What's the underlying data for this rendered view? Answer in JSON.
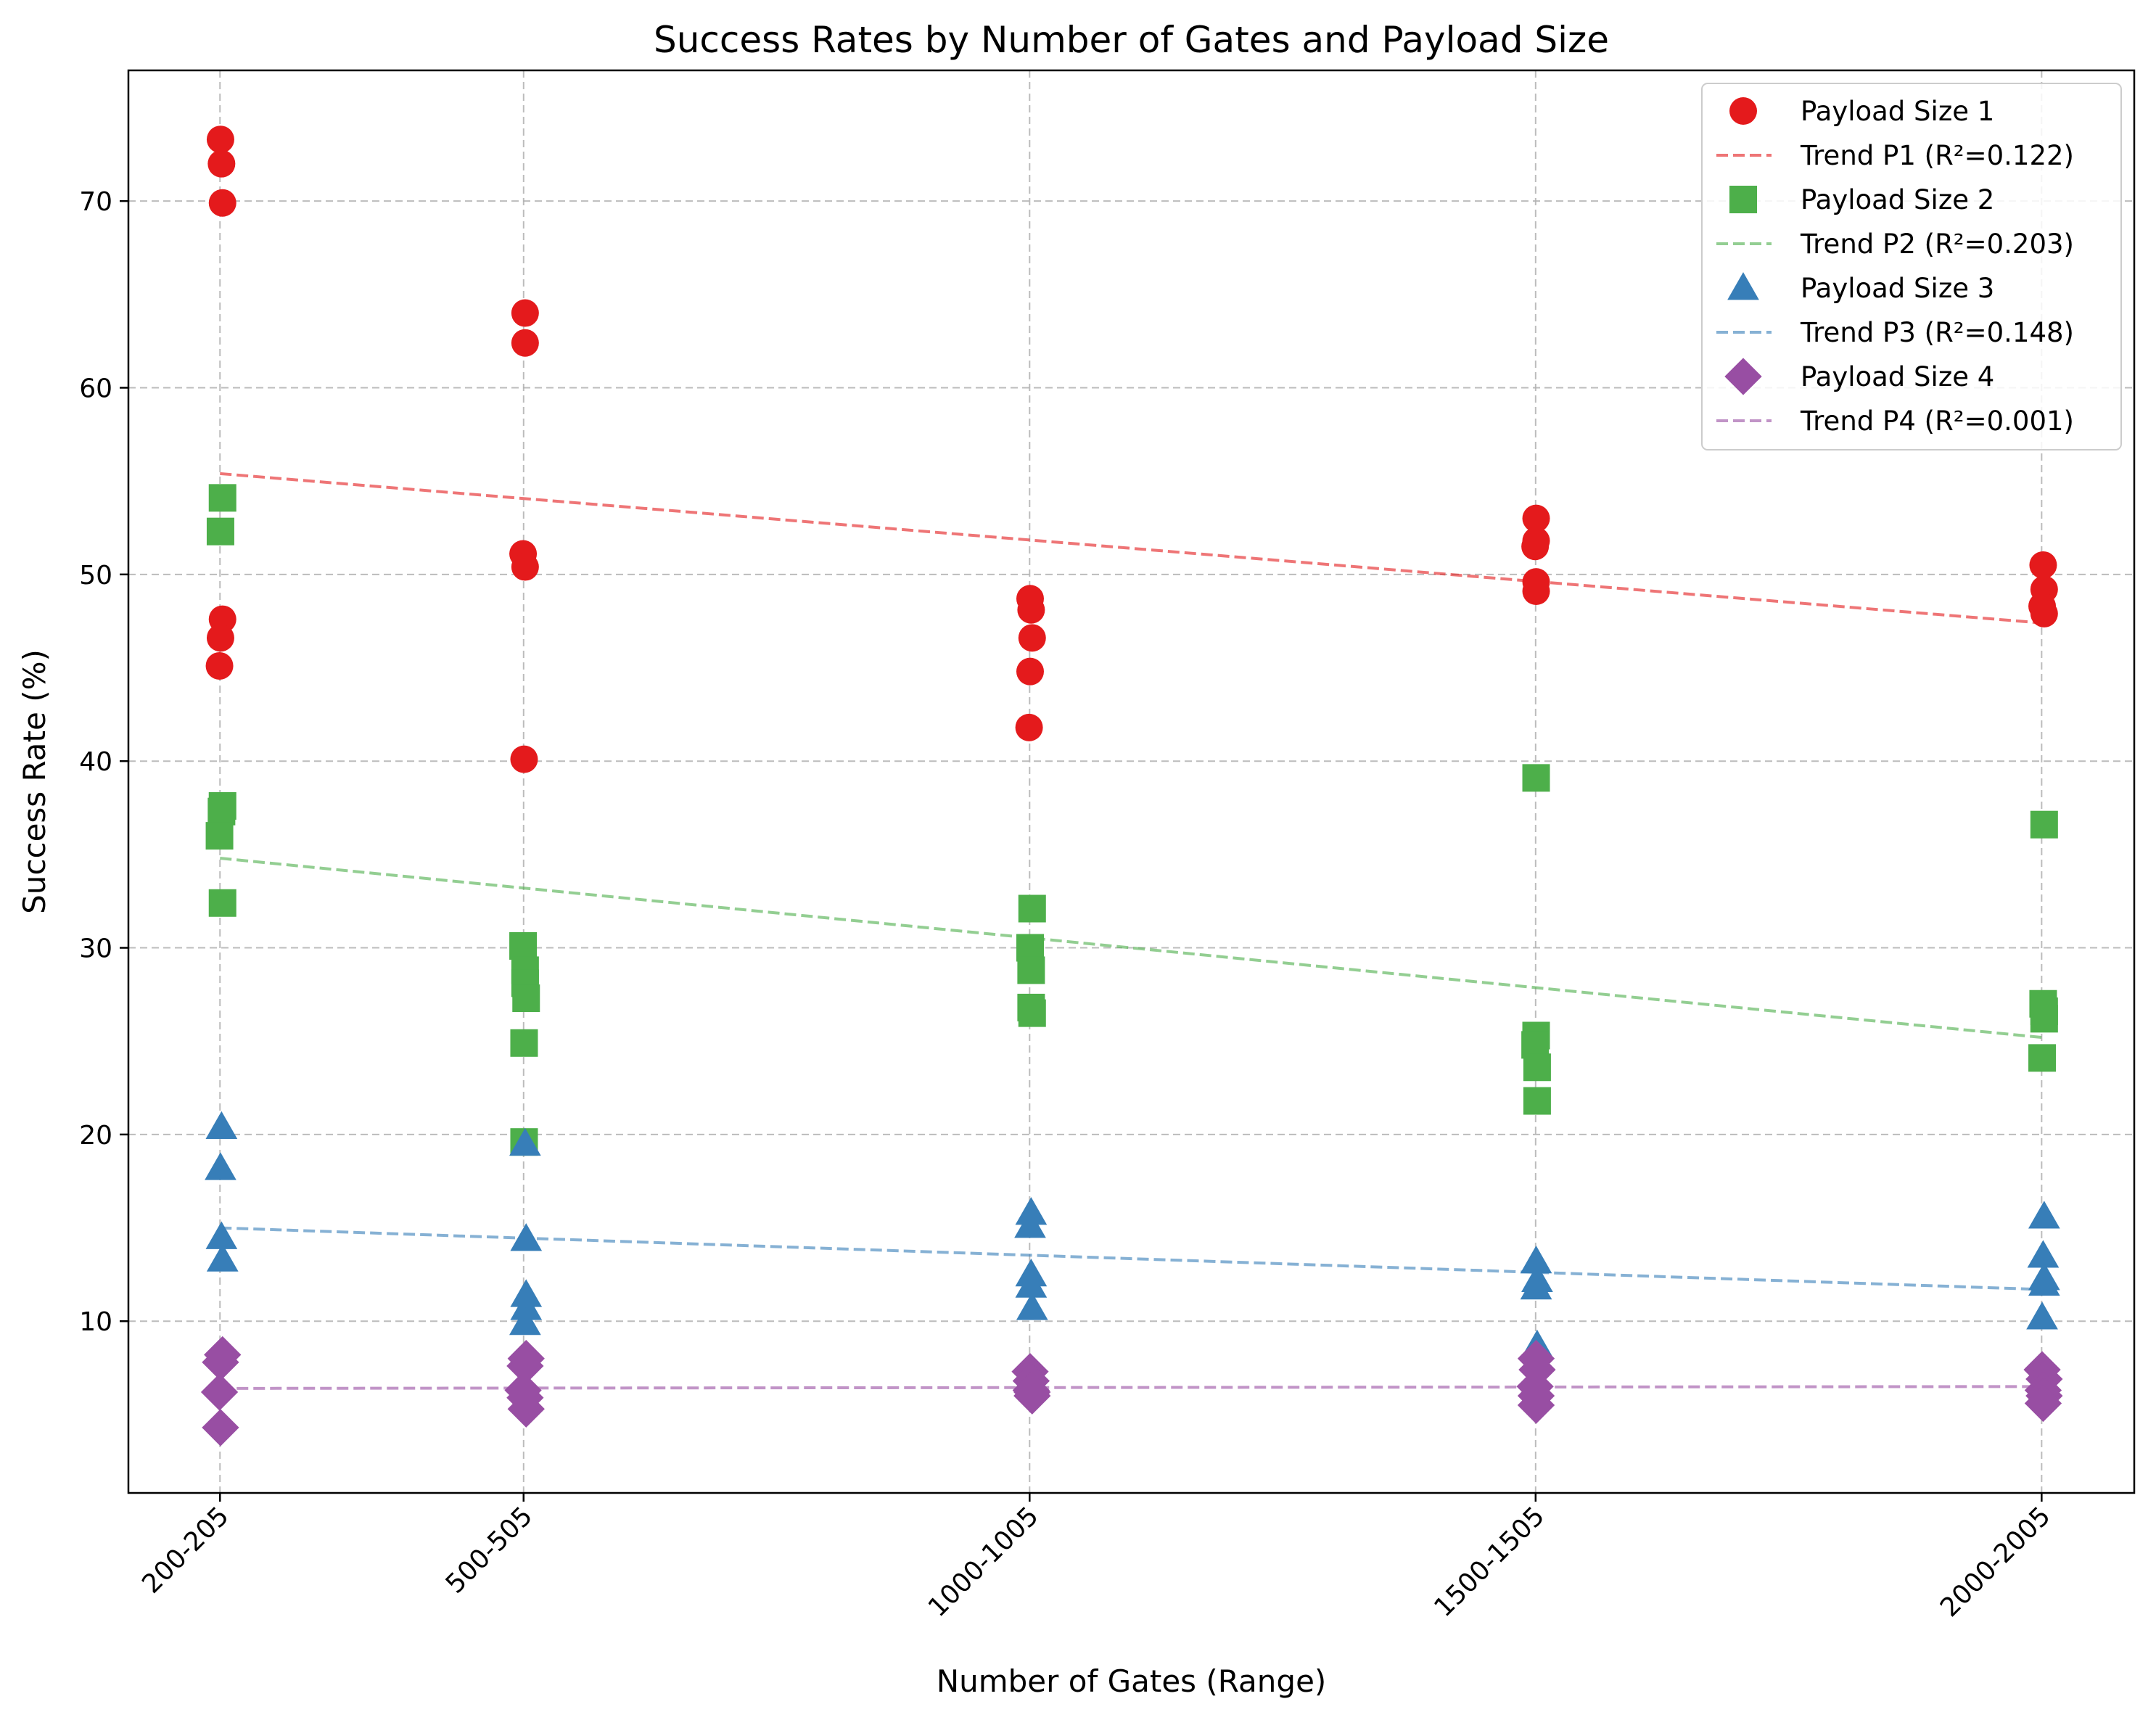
{
  "chart_data": {
    "type": "scatter",
    "title": "Success Rates by Number of Gates and Payload Size",
    "xlabel": "Number of Gates (Range)",
    "ylabel": "Success Rate (%)",
    "x_tick_values": [
      202.5,
      502.5,
      1002.5,
      1502.5,
      2002.5
    ],
    "x_tick_labels": [
      "200-205",
      "500-505",
      "1000-1005",
      "1500-1505",
      "2000-2005"
    ],
    "xlim": [
      112,
      2094
    ],
    "ylim": [
      0.8,
      77.0
    ],
    "y_ticks": [
      10,
      20,
      30,
      40,
      50,
      60,
      70
    ],
    "grid": true,
    "legend_position": "top-right",
    "series": [
      {
        "name": "Payload Size 1",
        "marker": "circle",
        "color": "#e41a1c",
        "trend_label": "Trend P1 (R²=0.122)",
        "trend": [
          [
            202.5,
            55.4
          ],
          [
            2002.5,
            47.4
          ]
        ],
        "points": [
          [
            203,
            73.3
          ],
          [
            204,
            72.0
          ],
          [
            205,
            69.9
          ],
          [
            205,
            47.6
          ],
          [
            203,
            46.6
          ],
          [
            202,
            45.1
          ],
          [
            504,
            64.0
          ],
          [
            504,
            62.4
          ],
          [
            502,
            51.1
          ],
          [
            504,
            50.4
          ],
          [
            503,
            40.1
          ],
          [
            1003,
            48.7
          ],
          [
            1004,
            48.1
          ],
          [
            1005,
            46.6
          ],
          [
            1003,
            44.8
          ],
          [
            1002,
            41.8
          ],
          [
            1503,
            53.0
          ],
          [
            1503,
            51.8
          ],
          [
            1502,
            51.5
          ],
          [
            1503,
            49.6
          ],
          [
            1503,
            49.1
          ],
          [
            2004,
            50.5
          ],
          [
            2005,
            49.2
          ],
          [
            2003,
            48.3
          ],
          [
            2005,
            47.9
          ]
        ]
      },
      {
        "name": "Payload Size 2",
        "marker": "square",
        "color": "#4daf4a",
        "trend_label": "Trend P2 (R²=0.203)",
        "trend": [
          [
            202.5,
            34.8
          ],
          [
            2002.5,
            25.2
          ]
        ],
        "points": [
          [
            205,
            54.1
          ],
          [
            203,
            52.3
          ],
          [
            205,
            37.6
          ],
          [
            204,
            37.3
          ],
          [
            202,
            36.0
          ],
          [
            205,
            32.4
          ],
          [
            502,
            30.1
          ],
          [
            504,
            28.8
          ],
          [
            504,
            28.1
          ],
          [
            505,
            27.3
          ],
          [
            503,
            24.9
          ],
          [
            503,
            19.6
          ],
          [
            1005,
            32.1
          ],
          [
            1003,
            30.0
          ],
          [
            1004,
            28.8
          ],
          [
            1004,
            26.8
          ],
          [
            1005,
            26.5
          ],
          [
            1503,
            39.1
          ],
          [
            1503,
            25.3
          ],
          [
            1502,
            24.8
          ],
          [
            1504,
            23.6
          ],
          [
            1504,
            21.8
          ],
          [
            2005,
            36.6
          ],
          [
            2004,
            27.0
          ],
          [
            2005,
            26.6
          ],
          [
            2005,
            26.2
          ],
          [
            2003,
            24.1
          ]
        ]
      },
      {
        "name": "Payload Size 3",
        "marker": "triangle",
        "color": "#377eb8",
        "trend_label": "Trend P3 (R²=0.148)",
        "trend": [
          [
            202.5,
            15.0
          ],
          [
            2002.5,
            11.7
          ]
        ],
        "points": [
          [
            204,
            20.4
          ],
          [
            203,
            18.2
          ],
          [
            204,
            14.5
          ],
          [
            205,
            13.3
          ],
          [
            504,
            19.5
          ],
          [
            505,
            14.4
          ],
          [
            505,
            11.4
          ],
          [
            505,
            10.7
          ],
          [
            504,
            9.9
          ],
          [
            1004,
            15.8
          ],
          [
            1003,
            15.1
          ],
          [
            1004,
            12.5
          ],
          [
            1004,
            11.9
          ],
          [
            1005,
            10.7
          ],
          [
            1503,
            13.2
          ],
          [
            1504,
            12.2
          ],
          [
            1503,
            11.8
          ],
          [
            1504,
            8.7
          ],
          [
            2005,
            15.6
          ],
          [
            2004,
            13.5
          ],
          [
            2005,
            12.3
          ],
          [
            2005,
            12.0
          ],
          [
            2003,
            10.2
          ]
        ]
      },
      {
        "name": "Payload Size 4",
        "marker": "diamond",
        "color": "#984ea3",
        "trend_label": "Trend P4 (R²=0.001)",
        "trend": [
          [
            202.5,
            6.4
          ],
          [
            2002.5,
            6.5
          ]
        ],
        "points": [
          [
            205,
            8.2
          ],
          [
            203,
            7.8
          ],
          [
            202,
            6.2
          ],
          [
            203,
            4.3
          ],
          [
            505,
            8.0
          ],
          [
            504,
            7.6
          ],
          [
            502,
            6.3
          ],
          [
            504,
            5.9
          ],
          [
            505,
            5.3
          ],
          [
            1003,
            7.3
          ],
          [
            1004,
            6.8
          ],
          [
            1004,
            6.3
          ],
          [
            1005,
            6.0
          ],
          [
            1005,
            6.2
          ],
          [
            1503,
            8.0
          ],
          [
            1504,
            7.4
          ],
          [
            1502,
            6.5
          ],
          [
            1503,
            6.0
          ],
          [
            1503,
            5.5
          ],
          [
            2003,
            7.4
          ],
          [
            2005,
            6.9
          ],
          [
            2004,
            6.3
          ],
          [
            2005,
            6.0
          ],
          [
            2004,
            5.6
          ]
        ]
      }
    ]
  }
}
